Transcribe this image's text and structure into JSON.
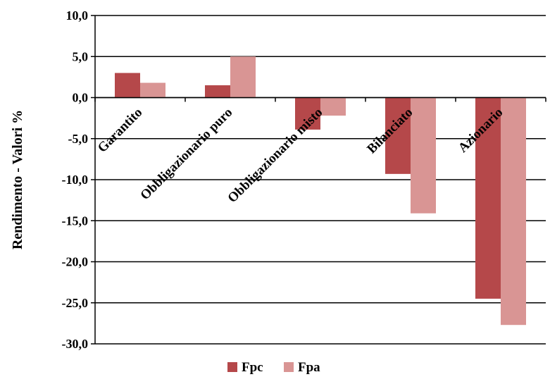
{
  "chart_data": {
    "type": "bar",
    "categories": [
      "Garantito",
      "Obbligazionario puro",
      "Obbligazionario misto",
      "Bilanciato",
      "Azionario"
    ],
    "series": [
      {
        "name": "Fpc",
        "values": [
          3.0,
          1.5,
          -3.9,
          -9.3,
          -24.5
        ],
        "color": "#b5484a"
      },
      {
        "name": "Fpa",
        "values": [
          1.8,
          5.0,
          -2.2,
          -14.1,
          -27.7
        ],
        "color": "#d99594"
      }
    ],
    "ylabel": "Rendimento - Valori %",
    "xlabel": "",
    "ylim": [
      -30,
      10
    ],
    "yticks": [
      10,
      5,
      0,
      -5,
      -10,
      -15,
      -20,
      -25,
      -30
    ],
    "ytick_labels": [
      "10,0",
      "5,0",
      "0,0",
      "-5,0",
      "-10,0",
      "-15,0",
      "-20,0",
      "-25,0",
      "-30,0"
    ],
    "grid": true,
    "legend_position": "bottom"
  }
}
